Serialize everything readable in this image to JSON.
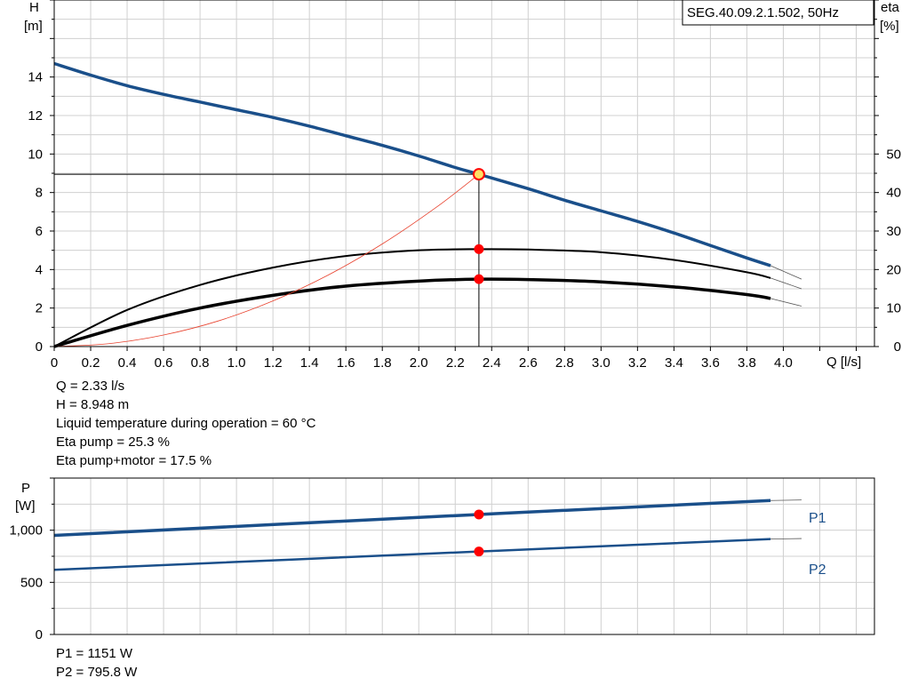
{
  "title_box": "SEG.40.09.2.1.502, 50Hz",
  "upper": {
    "left_axis": {
      "name": "H",
      "unit": "[m]"
    },
    "right_axis": {
      "name": "eta",
      "unit": "[%]"
    },
    "x_axis": {
      "label": "Q [l/s]"
    },
    "info": [
      "Q = 2.33 l/s",
      "H = 8.948 m",
      "Liquid temperature during operation = 60 °C",
      "Eta pump = 25.3 %",
      "Eta pump+motor = 17.5 %"
    ]
  },
  "lower": {
    "axis": {
      "name": "P",
      "unit": "[W]"
    },
    "info": [
      "P1 = 1151 W",
      "P2 = 795.8 W"
    ]
  },
  "colors": {
    "curve": "#1a4f8a",
    "grid": "#d0d0d0",
    "system": "#e8432f",
    "marker": "#ff0000",
    "op_fill": "#ffe066"
  },
  "chart_data": [
    {
      "type": "line",
      "x_label": "Q [l/s]",
      "x_ticks": [
        "0",
        "0.2",
        "0.4",
        "0.6",
        "0.8",
        "1.0",
        "1.2",
        "1.4",
        "1.6",
        "1.8",
        "2.0",
        "2.2",
        "2.4",
        "2.6",
        "2.8",
        "3.0",
        "3.2",
        "3.4",
        "3.6",
        "3.8",
        "4.0"
      ],
      "xlim": [
        0,
        4.5
      ],
      "y_ticks_left": [
        "0",
        "2",
        "4",
        "6",
        "8",
        "10",
        "12",
        "14"
      ],
      "ylim_left": [
        0,
        18
      ],
      "y_ticks_right": [
        "0",
        "10",
        "20",
        "30",
        "40",
        "50"
      ],
      "ylim_right": [
        0,
        90
      ],
      "grid": true,
      "operating_point": {
        "Q": 2.33,
        "H": 8.948,
        "eta_pump": 25.3,
        "eta_pump_motor": 17.5
      },
      "series": [
        {
          "axis": "left",
          "x": [
            0,
            0.2,
            0.4,
            0.6,
            0.8,
            1.0,
            1.2,
            1.4,
            1.6,
            1.8,
            2.0,
            2.2,
            2.33,
            2.6,
            2.8,
            3.0,
            3.2,
            3.4,
            3.6,
            3.8,
            3.93
          ],
          "y": [
            14.7,
            14.1,
            13.55,
            13.1,
            12.7,
            12.3,
            11.9,
            11.45,
            10.95,
            10.45,
            9.9,
            9.3,
            8.948,
            8.2,
            7.6,
            7.05,
            6.5,
            5.9,
            5.25,
            4.6,
            4.2
          ],
          "ext_x": [
            3.93,
            4.1
          ],
          "ext_y": [
            4.2,
            3.5
          ]
        },
        {
          "axis": "right",
          "x": [
            0,
            0.4,
            0.8,
            1.2,
            1.6,
            2.0,
            2.33,
            2.6,
            3.0,
            3.4,
            3.8,
            3.93
          ],
          "y": [
            0,
            9.5,
            16,
            20.5,
            23.5,
            25,
            25.3,
            25.2,
            24.5,
            22.5,
            19.3,
            17.8
          ],
          "ext_x": [
            3.93,
            4.1
          ],
          "ext_y": [
            17.8,
            15
          ]
        },
        {
          "axis": "right",
          "bold": true,
          "x": [
            0,
            0.4,
            0.8,
            1.2,
            1.6,
            2.0,
            2.33,
            2.6,
            3.0,
            3.4,
            3.8,
            3.93
          ],
          "y": [
            0,
            5.5,
            10,
            13.3,
            15.7,
            17,
            17.5,
            17.4,
            16.8,
            15.5,
            13.5,
            12.5
          ],
          "ext_x": [
            3.93,
            4.1
          ],
          "ext_y": [
            12.5,
            10.5
          ]
        },
        {
          "axis": "left",
          "system": true,
          "x": [
            0,
            0.3,
            0.6,
            0.9,
            1.2,
            1.5,
            1.8,
            2.1,
            2.33
          ],
          "y": [
            0,
            0.15,
            0.6,
            1.33,
            2.37,
            3.7,
            5.33,
            7.26,
            8.948
          ]
        }
      ]
    },
    {
      "type": "line",
      "x_label": "Q [l/s]",
      "xlim": [
        0,
        4.5
      ],
      "y_ticks": [
        "0",
        "500",
        "1,000"
      ],
      "ylim": [
        0,
        1500
      ],
      "grid": true,
      "operating_point": {
        "Q": 2.33,
        "P1": 1151,
        "P2": 795.8
      },
      "series": [
        {
          "name": "P1",
          "x": [
            0,
            2.33,
            3.93
          ],
          "y": [
            950,
            1151,
            1285
          ],
          "ext_x": [
            3.93,
            4.1
          ],
          "ext_y": [
            1285,
            1290
          ]
        },
        {
          "name": "P2",
          "x": [
            0,
            2.33,
            3.93
          ],
          "y": [
            620,
            795.8,
            915
          ],
          "ext_x": [
            3.93,
            4.1
          ],
          "ext_y": [
            915,
            920
          ]
        }
      ]
    }
  ]
}
